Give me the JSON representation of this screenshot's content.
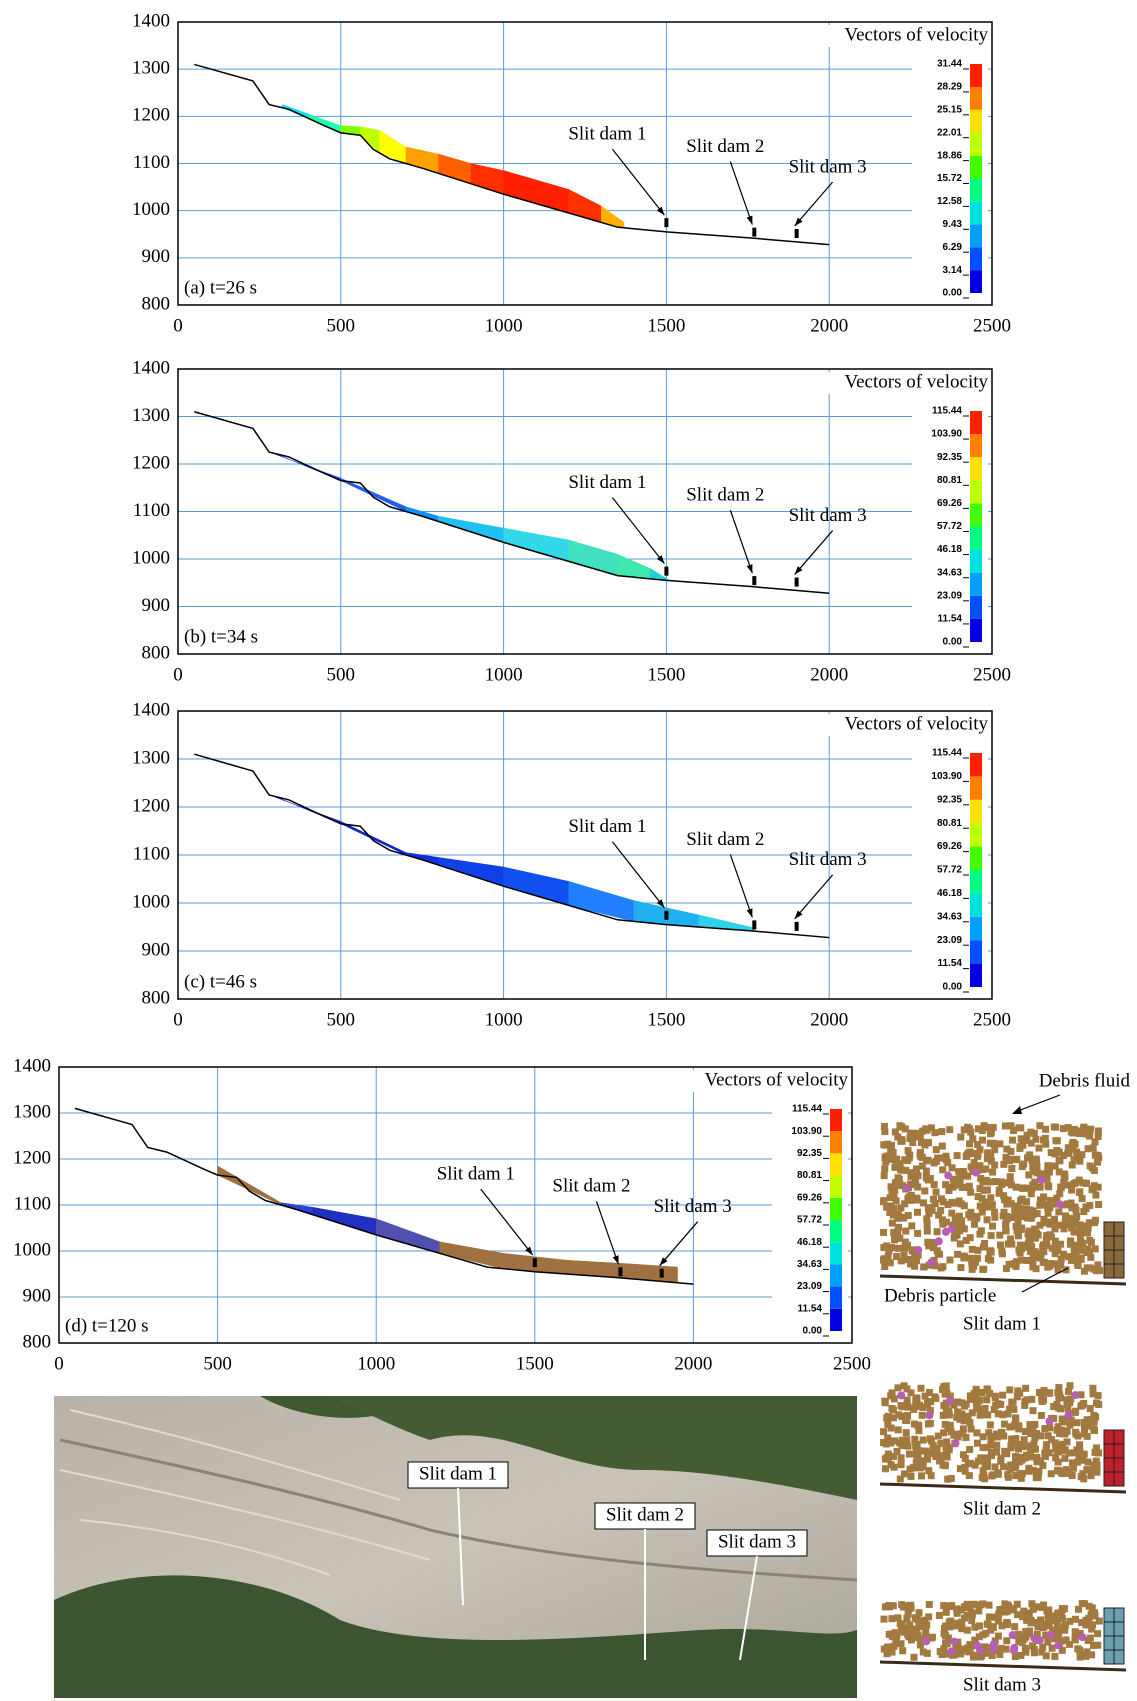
{
  "chart_data": [
    {
      "type": "profile",
      "label": "(a) t=26 s",
      "xlim": [
        0,
        2500
      ],
      "xticks": [
        0,
        500,
        1000,
        1500,
        2000,
        2500
      ],
      "ylim": [
        800,
        1400
      ],
      "yticks": [
        800,
        900,
        1000,
        1100,
        1200,
        1300,
        1400
      ],
      "grid": true,
      "terrain": {
        "color": "#000000",
        "x": [
          50,
          230,
          280,
          340,
          450,
          500,
          560,
          600,
          650,
          700,
          750,
          1000,
          1200,
          1350,
          1500,
          1760,
          2000
        ],
        "y": [
          1310,
          1275,
          1225,
          1215,
          1180,
          1165,
          1160,
          1130,
          1110,
          1100,
          1090,
          1035,
          995,
          965,
          955,
          942,
          928
        ]
      },
      "flow": {
        "x": [
          320,
          400,
          500,
          560,
          620,
          700,
          800,
          900,
          1000,
          1100,
          1200,
          1300,
          1370
        ],
        "top": [
          1225,
          1205,
          1180,
          1178,
          1170,
          1135,
          1120,
          1100,
          1085,
          1065,
          1045,
          1010,
          975
        ],
        "colors": [
          "#00e0ff",
          "#20ffb0",
          "#80ff00",
          "#c0ff00",
          "#ffff00",
          "#ffa000",
          "#ff6000",
          "#ff3000",
          "#ff2000",
          "#ff2000",
          "#ff3000",
          "#ffb000",
          "#80ff00"
        ]
      },
      "annotations": [
        {
          "text": "Slit dam 1",
          "x": 1500,
          "y": 965
        },
        {
          "text": "Slit dam 2",
          "x": 1770,
          "y": 945
        },
        {
          "text": "Slit dam 3",
          "x": 1900,
          "y": 942
        }
      ],
      "colorbar": {
        "title": "Vectors of velocity",
        "ticks": [
          {
            "value": 0,
            "label": "0.00"
          },
          3.14,
          6.29,
          9.43,
          12.58,
          15.72,
          18.86,
          22.01,
          25.15,
          28.29,
          31.44
        ],
        "colors": [
          "#0000e0",
          "#0050ff",
          "#00a0ff",
          "#00e0e0",
          "#00ff80",
          "#40ff00",
          "#c0ff00",
          "#ffe000",
          "#ff8000",
          "#ff2000"
        ]
      }
    },
    {
      "type": "profile",
      "label": "(b) t=34 s",
      "xlim": [
        0,
        2500
      ],
      "xticks": [
        0,
        500,
        1000,
        1500,
        2000,
        2500
      ],
      "ylim": [
        800,
        1400
      ],
      "yticks": [
        800,
        900,
        1000,
        1100,
        1200,
        1300,
        1400
      ],
      "grid": true,
      "terrain": {
        "color": "#000000",
        "x": [
          50,
          230,
          280,
          340,
          450,
          500,
          560,
          600,
          650,
          700,
          750,
          1000,
          1200,
          1350,
          1500,
          1760,
          2000
        ],
        "y": [
          1310,
          1275,
          1225,
          1215,
          1180,
          1165,
          1160,
          1130,
          1110,
          1100,
          1090,
          1035,
          995,
          965,
          955,
          942,
          928
        ]
      },
      "flow": {
        "x": [
          300,
          500,
          700,
          800,
          1000,
          1200,
          1350,
          1450,
          1510
        ],
        "top": [
          1220,
          1170,
          1110,
          1090,
          1065,
          1040,
          1010,
          980,
          955
        ],
        "colors": [
          "#1030e0",
          "#2060f0",
          "#1090ff",
          "#20c0f0",
          "#30d8e8",
          "#40e0c0",
          "#40e8b0",
          "#20d0e0",
          "#20d0e0"
        ]
      },
      "annotations": [
        {
          "text": "Slit dam 1",
          "x": 1500,
          "y": 965
        },
        {
          "text": "Slit dam 2",
          "x": 1770,
          "y": 945
        },
        {
          "text": "Slit dam 3",
          "x": 1900,
          "y": 942
        }
      ],
      "colorbar": {
        "title": "Vectors of velocity",
        "ticks": [
          {
            "value": 0,
            "label": "0.00"
          },
          11.54,
          23.09,
          34.63,
          46.18,
          57.72,
          69.26,
          80.81,
          92.35,
          {
            "value": 103.9,
            "label": "103.90"
          },
          115.44
        ],
        "colors": [
          "#0000e0",
          "#0050ff",
          "#00a0ff",
          "#00e0e0",
          "#00ff80",
          "#40ff00",
          "#c0ff00",
          "#ffe000",
          "#ff8000",
          "#ff2000"
        ]
      }
    },
    {
      "type": "profile",
      "label": "(c) t=46 s",
      "xlim": [
        0,
        2500
      ],
      "xticks": [
        0,
        500,
        1000,
        1500,
        2000,
        2500
      ],
      "ylim": [
        800,
        1400
      ],
      "yticks": [
        800,
        900,
        1000,
        1100,
        1200,
        1300,
        1400
      ],
      "grid": true,
      "terrain": {
        "color": "#000000",
        "x": [
          50,
          230,
          280,
          340,
          450,
          500,
          560,
          600,
          650,
          700,
          750,
          1000,
          1200,
          1350,
          1500,
          1760,
          2000
        ],
        "y": [
          1310,
          1275,
          1225,
          1215,
          1180,
          1165,
          1160,
          1130,
          1110,
          1100,
          1090,
          1035,
          995,
          965,
          955,
          942,
          928
        ]
      },
      "flow": {
        "x": [
          300,
          500,
          700,
          800,
          1000,
          1200,
          1400,
          1600,
          1770
        ],
        "top": [
          1220,
          1170,
          1105,
          1095,
          1075,
          1045,
          1005,
          975,
          948
        ],
        "colors": [
          "#1020d0",
          "#1020d0",
          "#1030e0",
          "#1040e8",
          "#1050f0",
          "#2080ff",
          "#20b0f0",
          "#30d0e8",
          "#30d0e8"
        ]
      },
      "annotations": [
        {
          "text": "Slit dam 1",
          "x": 1500,
          "y": 965
        },
        {
          "text": "Slit dam 2",
          "x": 1770,
          "y": 945
        },
        {
          "text": "Slit dam 3",
          "x": 1900,
          "y": 942
        }
      ],
      "colorbar": {
        "title": "Vectors of velocity",
        "ticks": [
          {
            "value": 0,
            "label": "0.00"
          },
          11.54,
          23.09,
          34.63,
          46.18,
          57.72,
          69.26,
          80.81,
          92.35,
          {
            "value": 103.9,
            "label": "103.90"
          },
          115.44
        ],
        "colors": [
          "#0000e0",
          "#0050ff",
          "#00a0ff",
          "#00e0e0",
          "#00ff80",
          "#40ff00",
          "#c0ff00",
          "#ffe000",
          "#ff8000",
          "#ff2000"
        ]
      }
    },
    {
      "type": "profile",
      "label": "(d) t=120 s",
      "xlim": [
        0,
        2500
      ],
      "xticks": [
        0,
        500,
        1000,
        1500,
        2000,
        2500
      ],
      "ylim": [
        800,
        1400
      ],
      "yticks": [
        800,
        900,
        1000,
        1100,
        1200,
        1300,
        1400
      ],
      "grid": true,
      "terrain": {
        "color": "#000000",
        "x": [
          50,
          230,
          280,
          340,
          450,
          500,
          560,
          600,
          650,
          700,
          750,
          1000,
          1200,
          1350,
          1500,
          1760,
          2000
        ],
        "y": [
          1310,
          1275,
          1225,
          1215,
          1180,
          1165,
          1160,
          1130,
          1110,
          1100,
          1090,
          1035,
          995,
          965,
          955,
          942,
          928
        ]
      },
      "flow": {
        "x": [
          500,
          700,
          800,
          1000,
          1200,
          1400,
          1600,
          1800,
          1950
        ],
        "top": [
          1185,
          1105,
          1095,
          1070,
          1020,
          995,
          980,
          972,
          965
        ],
        "colors": [
          "#a07040",
          "#3040d0",
          "#2030c0",
          "#5050b0",
          "#a07040",
          "#a07040",
          "#a07040",
          "#a07040",
          "#a07040"
        ]
      },
      "annotations": [
        {
          "text": "Slit dam 1",
          "x": 1500,
          "y": 965
        },
        {
          "text": "Slit dam 2",
          "x": 1770,
          "y": 945
        },
        {
          "text": "Slit dam 3",
          "x": 1900,
          "y": 942
        }
      ],
      "colorbar": {
        "title": "Vectors of velocity",
        "ticks": [
          {
            "value": 0,
            "label": "0.00"
          },
          11.54,
          23.09,
          34.63,
          46.18,
          57.72,
          69.26,
          80.81,
          92.35,
          {
            "value": 103.9,
            "label": "103.90"
          },
          115.44
        ],
        "colors": [
          "#0000e0",
          "#0050ff",
          "#00a0ff",
          "#00e0e0",
          "#00ff80",
          "#40ff00",
          "#c0ff00",
          "#ffe000",
          "#ff8000",
          "#ff2000"
        ]
      }
    }
  ],
  "insets": {
    "fluid_label": "Debris fluid",
    "particle_label": "Debris particle",
    "captions": [
      "Slit dam 1",
      "Slit dam 2",
      "Slit dam 3"
    ]
  },
  "photo": {
    "labels": [
      "Slit dam 1",
      "Slit dam 2",
      "Slit dam 3"
    ]
  }
}
